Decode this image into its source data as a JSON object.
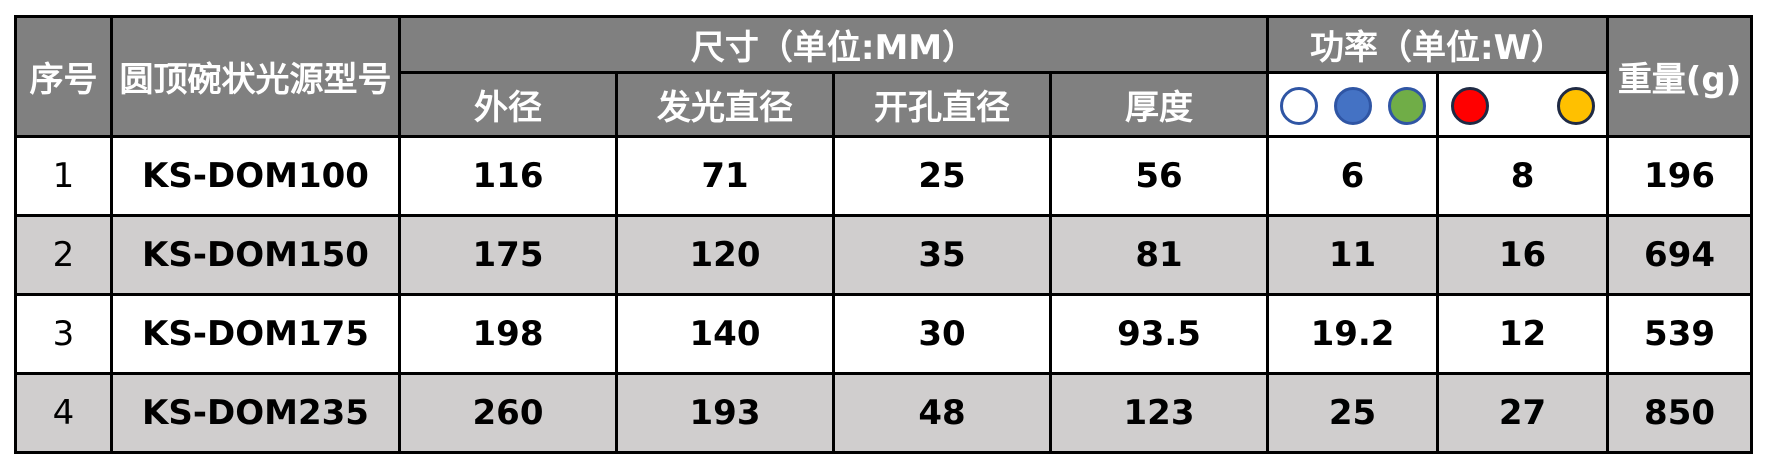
{
  "header": {
    "index": "序号",
    "model": "圆顶碗状光源型号",
    "size_group": "尺寸（单位:MM）",
    "power_group": "功率（单位:W）",
    "weight": "重量(g)",
    "size_cols": [
      "外径",
      "发光直径",
      "开孔直径",
      "厚度"
    ],
    "power_col1_colors": [
      "#ffffff",
      "#4472c4",
      "#70ad47"
    ],
    "power_col2_colors": [
      "#ff0000",
      "#ffc000"
    ]
  },
  "rows": [
    {
      "index": "1",
      "model": "KS-DOM100",
      "outer": "116",
      "emit": "71",
      "hole": "25",
      "thick": "56",
      "p1": "6",
      "p2": "8",
      "weight": "196"
    },
    {
      "index": "2",
      "model": "KS-DOM150",
      "outer": "175",
      "emit": "120",
      "hole": "35",
      "thick": "81",
      "p1": "11",
      "p2": "16",
      "weight": "694"
    },
    {
      "index": "3",
      "model": "KS-DOM175",
      "outer": "198",
      "emit": "140",
      "hole": "30",
      "thick": "93.5",
      "p1": "19.2",
      "p2": "12",
      "weight": "539"
    },
    {
      "index": "4",
      "model": "KS-DOM235",
      "outer": "260",
      "emit": "193",
      "hole": "48",
      "thick": "123",
      "p1": "25",
      "p2": "27",
      "weight": "850"
    }
  ],
  "colors": {
    "header_bg": "#808080",
    "alt_row_bg": "#d0cece"
  }
}
